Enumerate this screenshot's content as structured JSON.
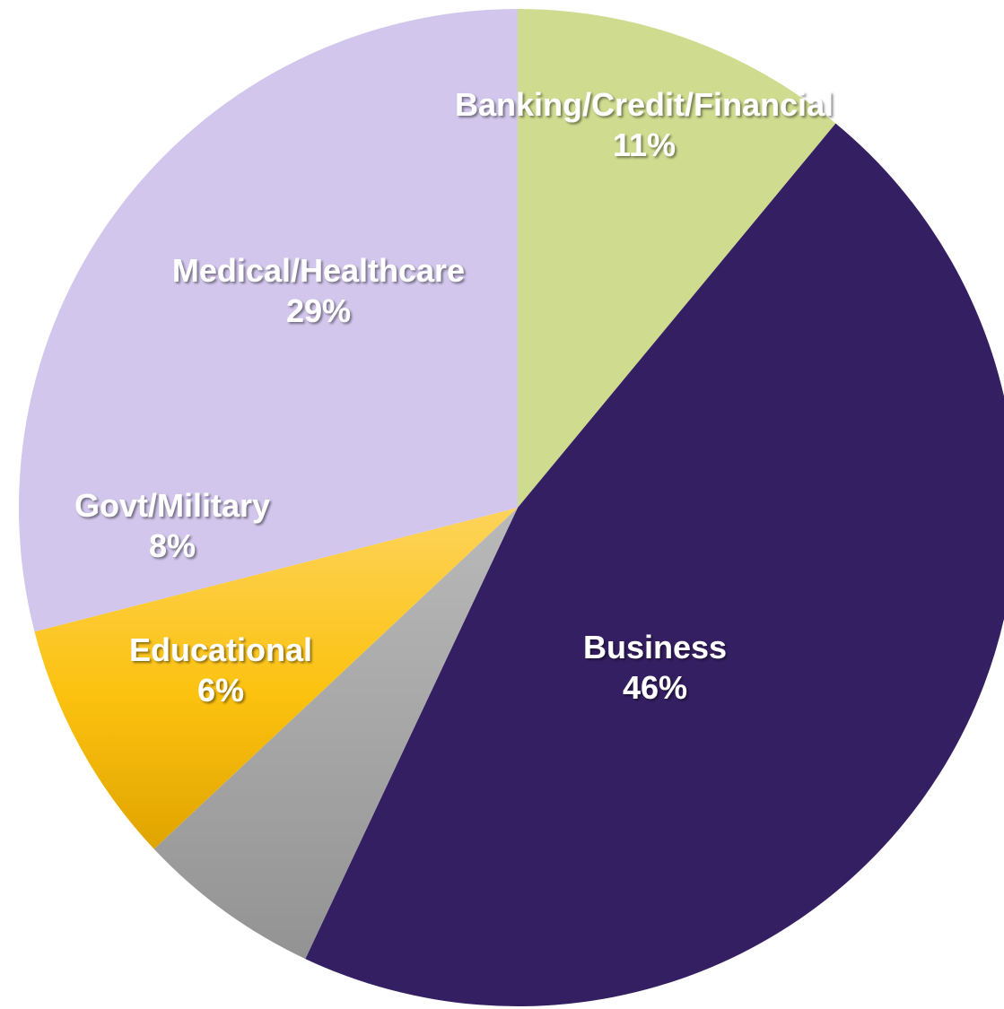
{
  "chart_data": {
    "type": "pie",
    "slices": [
      {
        "label": "Banking/Credit/Financial",
        "percent_label": "11%",
        "value": 11,
        "color": "#cfdb8f"
      },
      {
        "label": "Business",
        "percent_label": "46%",
        "value": 46,
        "color": "#351f63"
      },
      {
        "label": "Educational",
        "percent_label": "6%",
        "value": 6,
        "color": "#a7a7a7"
      },
      {
        "label": "Govt/Military",
        "percent_label": "8%",
        "value": 8,
        "color": "#fcc20f"
      },
      {
        "label": "Medical/Healthcare",
        "percent_label": "29%",
        "value": 29,
        "color": "#d2c6ec"
      }
    ],
    "start": "12 o'clock",
    "direction": "clockwise",
    "legend": "none",
    "labels": "inside slices, white bold"
  }
}
